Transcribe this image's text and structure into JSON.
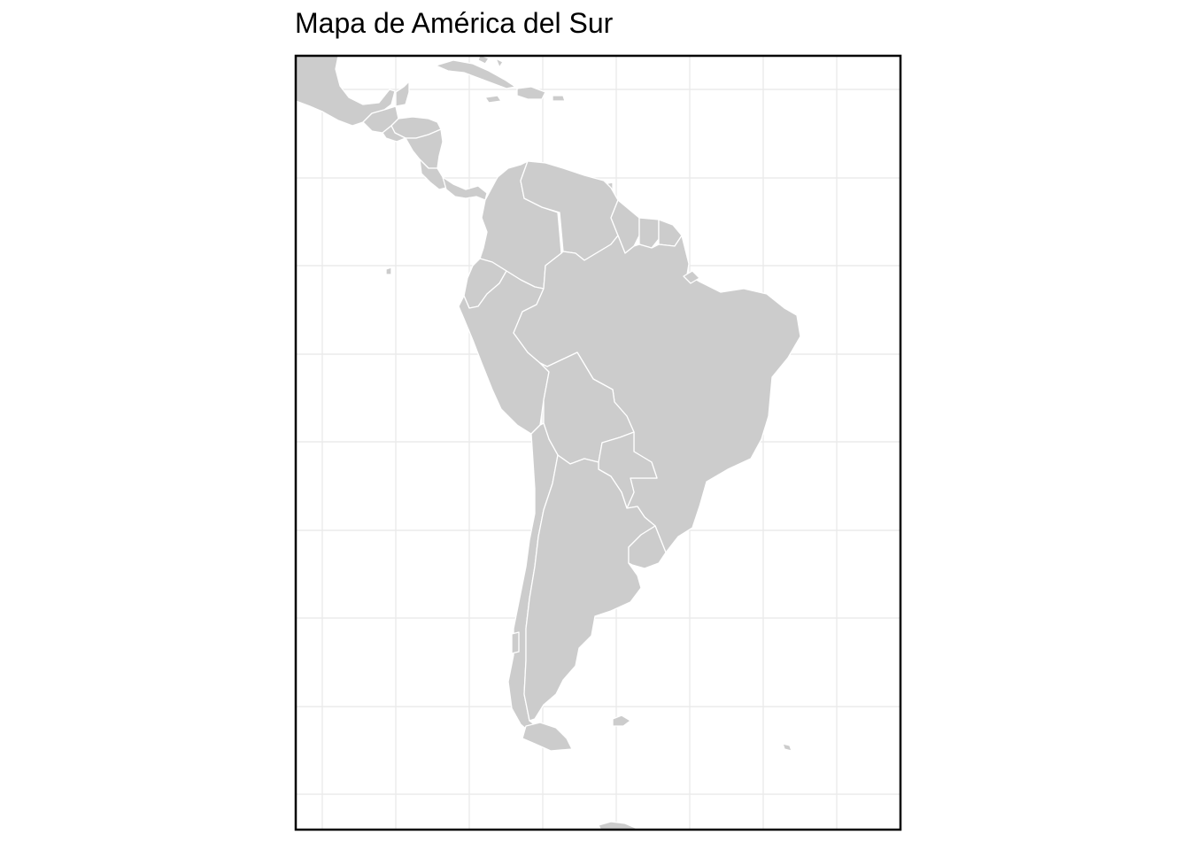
{
  "map": {
    "title": "Mapa de América del Sur",
    "colors": {
      "land": "#cccccc",
      "border": "#ffffff",
      "grid": "#ebebeb",
      "frame": "#000000",
      "background": "#ffffff"
    }
  }
}
